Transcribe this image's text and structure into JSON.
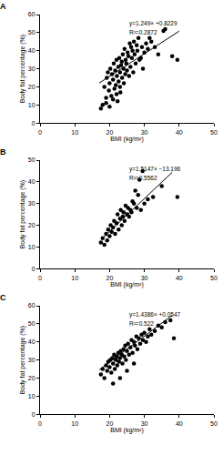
{
  "chart_data": [
    {
      "type": "scatter",
      "title": "A",
      "x_label": "BMI (kg/m²)",
      "y_label": "Body fat percentage (%)",
      "annotations": [
        "y=1.249× +0.8229",
        "R²=0.2872"
      ],
      "xlim": [
        0,
        50
      ],
      "ylim": [
        0,
        60
      ],
      "xticks": [
        0,
        10,
        20,
        30,
        40,
        50
      ],
      "yticks": [
        0,
        10,
        20,
        30,
        40,
        50,
        60
      ],
      "series": [
        {
          "type": "scatter",
          "marker": "circle",
          "color": "#000000",
          "x": [
            18.0,
            18.5,
            19.0,
            19.2,
            19.5,
            19.8,
            20.0,
            20.2,
            20.5,
            20.7,
            21.0,
            21.2,
            21.4,
            21.6,
            21.8,
            22.0,
            22.1,
            22.3,
            22.5,
            22.6,
            22.8,
            23.0,
            23.1,
            23.3,
            23.5,
            23.6,
            23.8,
            24.0,
            24.1,
            24.3,
            24.5,
            24.6,
            24.8,
            25.0,
            25.2,
            25.4,
            25.6,
            25.8,
            26.0,
            26.2,
            26.4,
            26.6,
            26.8,
            27.0,
            27.2,
            27.5,
            27.8,
            28.0,
            28.3,
            28.6,
            29.0,
            29.3,
            29.6,
            30.0,
            30.5,
            31.0,
            31.5,
            32.0,
            33.0,
            34.0,
            35.5,
            36.0,
            38.0,
            39.5,
            17.5,
            19.0,
            20.0,
            21.0,
            22.0,
            23.0
          ],
          "values": [
            10,
            20,
            14,
            25,
            28,
            18,
            22,
            30,
            15,
            27,
            24,
            33,
            19,
            29,
            21,
            35,
            26,
            12,
            31,
            23,
            36,
            28,
            17,
            32,
            34,
            25,
            38,
            30,
            22,
            41,
            27,
            35,
            33,
            29,
            39,
            37,
            26,
            44,
            31,
            42,
            36,
            40,
            28,
            45,
            38,
            33,
            43,
            40,
            47,
            35,
            36,
            42,
            30,
            39,
            44,
            41,
            47,
            45,
            42,
            38,
            51,
            52,
            37,
            35,
            8,
            11,
            9,
            13,
            16,
            20
          ]
        },
        {
          "type": "line",
          "line_style": "solid",
          "color": "#000000",
          "x": [
            17,
            40
          ],
          "values": [
            22.1,
            50.8
          ]
        }
      ]
    },
    {
      "type": "scatter",
      "title": "B",
      "x_label": "BMI (kg/m²)",
      "y_label": "Body fat percentage (%)",
      "annotations": [
        "y=1.5147× −13.196",
        "R²=0.5562"
      ],
      "xlim": [
        0,
        50
      ],
      "ylim": [
        0,
        50
      ],
      "xticks": [
        0,
        10,
        20,
        30,
        40,
        50
      ],
      "yticks": [
        0,
        10,
        20,
        30,
        40,
        50
      ],
      "series": [
        {
          "type": "scatter",
          "marker": "circle",
          "color": "#000000",
          "x": [
            17.5,
            18.0,
            18.5,
            19.0,
            19.3,
            19.6,
            20.0,
            20.3,
            20.6,
            21.0,
            21.3,
            21.6,
            22.0,
            22.3,
            22.6,
            23.0,
            23.2,
            23.5,
            23.8,
            24.0,
            24.3,
            24.6,
            25.0,
            25.3,
            25.6,
            26.0,
            26.3,
            26.6,
            27.0,
            27.4,
            27.8,
            28.2,
            28.6,
            29.0,
            29.5,
            30.0,
            31.0,
            32.5,
            35.0,
            39.5
          ],
          "values": [
            12,
            14,
            11,
            16,
            13,
            18,
            15,
            20,
            17,
            19,
            22,
            16,
            21,
            25,
            18,
            23,
            27,
            20,
            24,
            26,
            22,
            29,
            25,
            28,
            24,
            27,
            26,
            31,
            30,
            36,
            28,
            34,
            41,
            27,
            45,
            30,
            32,
            33,
            38,
            33
          ]
        },
        {
          "type": "line",
          "line_style": "solid",
          "color": "#000000",
          "x": [
            18,
            38
          ],
          "values": [
            14.1,
            44.4
          ]
        }
      ]
    },
    {
      "type": "scatter",
      "title": "C",
      "x_label": "BMI (kg/m²)",
      "y_label": "Body fat percentage (%)",
      "annotations": [
        "y=1.4386× +0.0547",
        "R²=0.522"
      ],
      "xlim": [
        0,
        50
      ],
      "ylim": [
        0,
        60
      ],
      "xticks": [
        0,
        10,
        20,
        30,
        40,
        50
      ],
      "yticks": [
        0,
        10,
        20,
        30,
        40,
        50,
        60
      ],
      "series": [
        {
          "type": "scatter",
          "marker": "circle",
          "color": "#000000",
          "x": [
            17.5,
            18.0,
            18.5,
            19.0,
            19.3,
            19.6,
            20.0,
            20.2,
            20.5,
            20.8,
            21.0,
            21.3,
            21.5,
            21.8,
            22.0,
            22.2,
            22.5,
            22.7,
            23.0,
            23.2,
            23.5,
            23.7,
            24.0,
            24.2,
            24.5,
            24.7,
            25.0,
            25.3,
            25.6,
            26.0,
            26.3,
            26.6,
            27.0,
            27.3,
            27.7,
            28.0,
            28.4,
            28.8,
            29.2,
            29.6,
            30.0,
            30.5,
            31.0,
            31.5,
            32.0,
            33.0,
            34.0,
            35.0,
            36.0,
            37.5,
            38.5,
            21.0,
            23.0,
            25.0,
            27.0
          ],
          "values": [
            22,
            25,
            20,
            27,
            24,
            29,
            26,
            30,
            23,
            31,
            28,
            33,
            25,
            30,
            32,
            27,
            34,
            29,
            31,
            35,
            33,
            28,
            36,
            32,
            38,
            30,
            35,
            39,
            33,
            37,
            41,
            34,
            40,
            38,
            43,
            36,
            42,
            39,
            44,
            41,
            45,
            40,
            43,
            47,
            44,
            46,
            49,
            48,
            51,
            52,
            42,
            17,
            20,
            24,
            28
          ]
        },
        {
          "type": "line",
          "line_style": "solid",
          "color": "#000000",
          "x": [
            17,
            38
          ],
          "values": [
            24.5,
            54.7
          ]
        }
      ]
    }
  ]
}
